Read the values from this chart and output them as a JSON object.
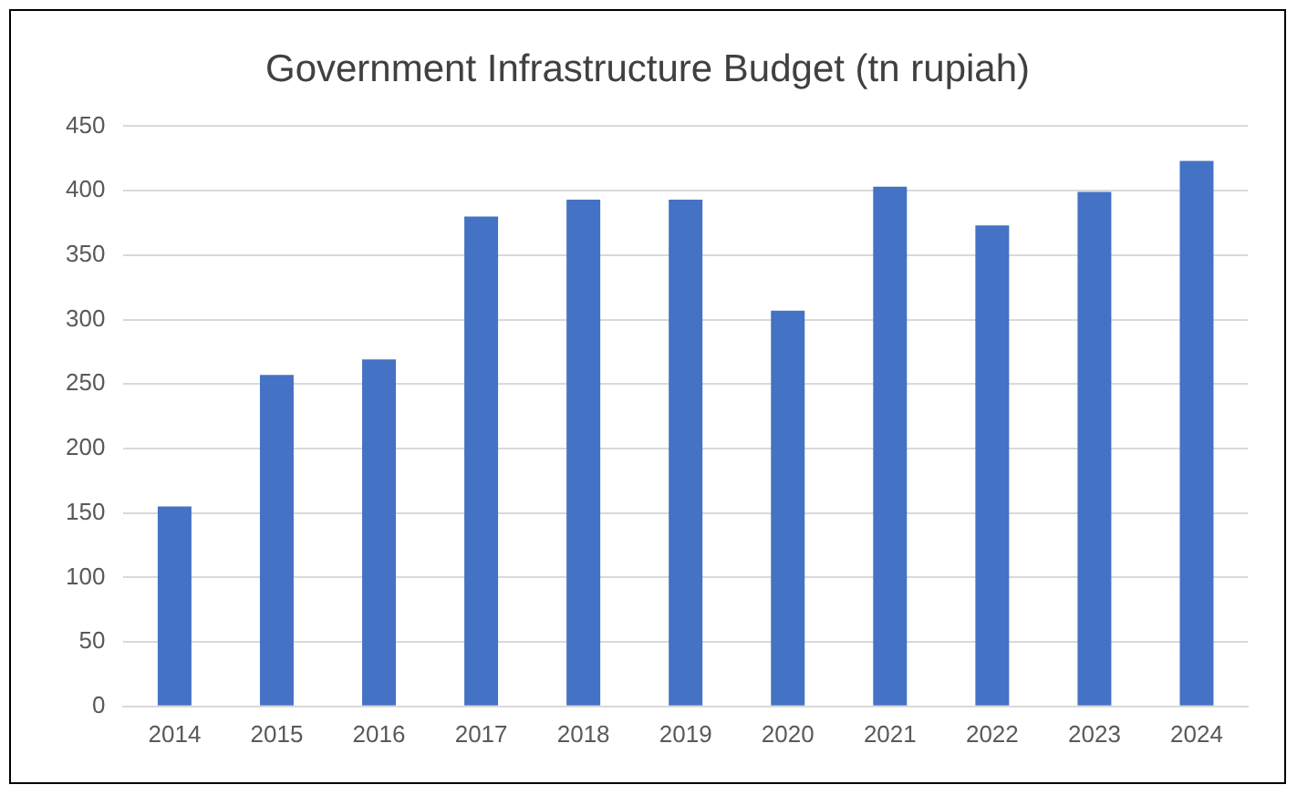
{
  "chart_data": {
    "type": "bar",
    "title": "Government Infrastructure Budget (tn rupiah)",
    "categories": [
      "2014",
      "2015",
      "2016",
      "2017",
      "2018",
      "2019",
      "2020",
      "2021",
      "2022",
      "2023",
      "2024"
    ],
    "values": [
      155,
      257,
      269,
      380,
      393,
      393,
      307,
      403,
      373,
      399,
      423
    ],
    "color": "#4472c4",
    "ylim": [
      0,
      450
    ],
    "yticks": [
      0,
      50,
      100,
      150,
      200,
      250,
      300,
      350,
      400,
      450
    ],
    "grid": "y",
    "legend": false
  }
}
